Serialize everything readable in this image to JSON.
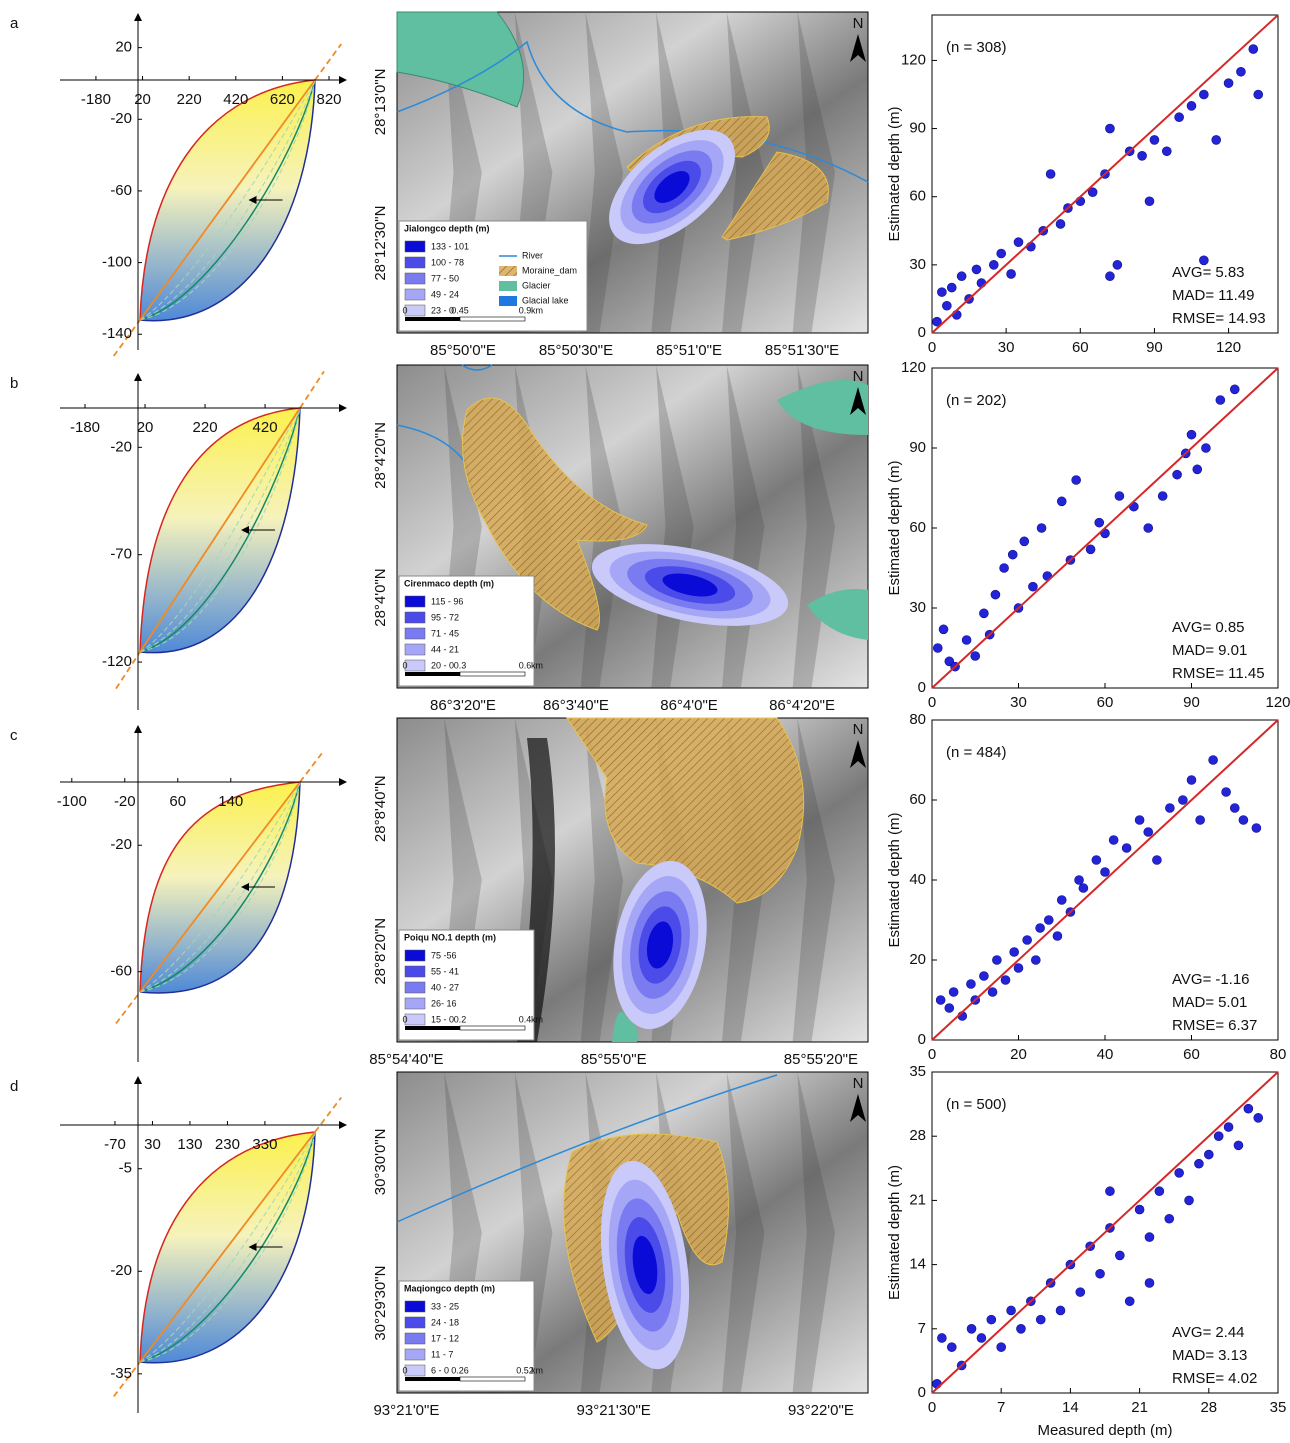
{
  "chart_data": [
    {
      "type": "scatter",
      "sample_label": "(n = 308)",
      "y_label": "Estimated depth (m)",
      "xlim": [
        0,
        140
      ],
      "ylim": [
        0,
        140
      ],
      "xticks": [
        0,
        30,
        60,
        90,
        120
      ],
      "yticks": [
        0,
        30,
        60,
        90,
        120
      ],
      "color": "#2323d8",
      "line_color": "#d62728",
      "x": [
        2,
        4,
        6,
        8,
        10,
        12,
        15,
        18,
        20,
        25,
        28,
        32,
        35,
        40,
        45,
        48,
        52,
        55,
        60,
        65,
        70,
        72,
        75,
        80,
        85,
        90,
        95,
        100,
        105,
        110,
        115,
        120,
        125,
        130,
        132,
        72,
        88,
        110
      ],
      "values": [
        5,
        18,
        12,
        20,
        8,
        25,
        15,
        28,
        22,
        30,
        35,
        26,
        40,
        38,
        45,
        70,
        48,
        55,
        58,
        62,
        70,
        90,
        30,
        80,
        78,
        85,
        80,
        95,
        100,
        105,
        85,
        110,
        115,
        125,
        105,
        25,
        58,
        32
      ],
      "stats": [
        {
          "label": "AVG=",
          "value": 5.83
        },
        {
          "label": "MAD=",
          "value": 11.49
        },
        {
          "label": "RMSE=",
          "value": 14.93
        }
      ]
    },
    {
      "type": "scatter",
      "sample_label": "(n = 202)",
      "y_label": "Estimated depth (m)",
      "xlim": [
        0,
        120
      ],
      "ylim": [
        0,
        120
      ],
      "xticks": [
        0,
        30,
        60,
        90,
        120
      ],
      "yticks": [
        0,
        30,
        60,
        90,
        120
      ],
      "color": "#2323d8",
      "line_color": "#d62728",
      "x": [
        2,
        4,
        6,
        8,
        12,
        15,
        18,
        20,
        22,
        25,
        28,
        30,
        32,
        35,
        38,
        40,
        45,
        48,
        50,
        55,
        58,
        60,
        65,
        70,
        75,
        80,
        85,
        88,
        90,
        92,
        95,
        100,
        105
      ],
      "values": [
        15,
        22,
        10,
        8,
        18,
        12,
        28,
        20,
        35,
        45,
        50,
        30,
        55,
        38,
        60,
        42,
        70,
        48,
        78,
        52,
        62,
        58,
        72,
        68,
        60,
        72,
        80,
        88,
        95,
        82,
        90,
        108,
        112
      ],
      "stats": [
        {
          "label": "AVG=",
          "value": 0.85
        },
        {
          "label": "MAD=",
          "value": 9.01
        },
        {
          "label": "RMSE=",
          "value": 11.45
        }
      ]
    },
    {
      "type": "scatter",
      "sample_label": "(n = 484)",
      "y_label": "Estimated depth (m)",
      "xlim": [
        0,
        80
      ],
      "ylim": [
        0,
        80
      ],
      "xticks": [
        0,
        20,
        40,
        60,
        80
      ],
      "yticks": [
        0,
        20,
        40,
        60,
        80
      ],
      "color": "#2323d8",
      "line_color": "#d62728",
      "x": [
        2,
        4,
        5,
        7,
        9,
        10,
        12,
        14,
        15,
        17,
        19,
        20,
        22,
        24,
        25,
        27,
        29,
        30,
        32,
        34,
        35,
        38,
        40,
        42,
        45,
        48,
        50,
        52,
        55,
        58,
        60,
        62,
        65,
        68,
        70,
        72,
        75
      ],
      "values": [
        10,
        8,
        12,
        6,
        14,
        10,
        16,
        12,
        20,
        15,
        22,
        18,
        25,
        20,
        28,
        30,
        26,
        35,
        32,
        40,
        38,
        45,
        42,
        50,
        48,
        55,
        52,
        45,
        58,
        60,
        65,
        55,
        70,
        62,
        58,
        55,
        53
      ],
      "stats": [
        {
          "label": "AVG=",
          "value": -1.16
        },
        {
          "label": "MAD=",
          "value": 5.01
        },
        {
          "label": "RMSE=",
          "value": 6.37
        }
      ]
    },
    {
      "type": "scatter",
      "sample_label": "(n = 500)",
      "y_label": "Estimated depth (m)",
      "x_label": "Measured depth (m)",
      "xlim": [
        0,
        35
      ],
      "ylim": [
        0,
        35
      ],
      "xticks": [
        0,
        7,
        14,
        21,
        28,
        35
      ],
      "yticks": [
        0,
        7,
        14,
        21,
        28,
        35
      ],
      "color": "#2323d8",
      "line_color": "#d62728",
      "x": [
        0.5,
        1,
        2,
        3,
        4,
        5,
        6,
        7,
        8,
        9,
        10,
        11,
        12,
        13,
        14,
        15,
        16,
        17,
        18,
        19,
        20,
        21,
        22,
        23,
        24,
        25,
        26,
        27,
        28,
        29,
        30,
        31,
        32,
        33,
        18,
        22
      ],
      "values": [
        1,
        6,
        5,
        3,
        7,
        6,
        8,
        5,
        9,
        7,
        10,
        8,
        12,
        9,
        14,
        11,
        16,
        13,
        18,
        15,
        10,
        20,
        17,
        22,
        19,
        24,
        21,
        25,
        26,
        28,
        29,
        27,
        31,
        30,
        22,
        12
      ],
      "stats": [
        {
          "label": "AVG=",
          "value": 2.44
        },
        {
          "label": "MAD=",
          "value": 3.13
        },
        {
          "label": "RMSE=",
          "value": 4.02
        }
      ]
    }
  ],
  "panels": [
    {
      "label": "a",
      "diagram": {
        "xlim": [
          -420,
          910
        ],
        "ylim": [
          -146,
          41
        ],
        "xticks": [
          -180,
          20,
          220,
          420,
          620,
          820
        ],
        "yticks": [
          20,
          -20,
          -60,
          -100,
          -140
        ]
      },
      "map": {
        "legend_title": "Jialongco depth (m)",
        "classes": [
          "133 - 101",
          "100 - 78",
          "77 - 50",
          "49 - 24",
          "23 - 0"
        ],
        "scale": [
          "0",
          "0.45",
          "0.9",
          "km"
        ],
        "north": "N",
        "extra": [
          "River",
          "Moraine_dam",
          "Glacier",
          "Glacial lake"
        ],
        "lat": [
          "28°13'0\"N",
          "28°12'30\"N"
        ],
        "lon": [
          "85°50'0\"E",
          "85°50'30\"E",
          "85°51'0\"E",
          "85°51'30\"E"
        ]
      }
    },
    {
      "label": "b",
      "diagram": {
        "xlim": [
          -330,
          703
        ],
        "ylim": [
          -140,
          16
        ],
        "xticks": [
          -180,
          20,
          220,
          420
        ],
        "yticks": [
          -20,
          -70,
          -120
        ]
      },
      "map": {
        "legend_title": "Cirenmaco depth (m)",
        "classes": [
          "115 - 96",
          "95 - 72",
          "71 - 45",
          "44 - 21",
          "20 - 0"
        ],
        "scale": [
          "0",
          "0.3",
          "0.6",
          "km"
        ],
        "north": "N",
        "lat": [
          "28°4'20\"N",
          "28°4'0\"N"
        ],
        "lon": [
          "86°3'20\"E",
          "86°3'40\"E",
          "86°4'0\"E",
          "86°4'20\"E"
        ]
      }
    },
    {
      "label": "c",
      "diagram": {
        "xlim": [
          -148,
          320
        ],
        "ylim": [
          -87,
          19
        ],
        "xticks": [
          -100,
          -20,
          60,
          140
        ],
        "yticks": [
          -20,
          -60
        ]
      },
      "map": {
        "legend_title": "Poiqu NO.1 depth (m)",
        "classes": [
          "75 -56",
          "55 - 41",
          "40 - 27",
          "26- 16",
          "15 - 0"
        ],
        "scale": [
          "0",
          "0.2",
          "0.4",
          "km"
        ],
        "north": "N",
        "lat": [
          "28°8'40\"N",
          "28°8'20\"N"
        ],
        "lon": [
          "85°54'40\"E",
          "85°55'0\"E",
          "85°55'20\"E"
        ]
      }
    },
    {
      "label": "d",
      "diagram": {
        "xlim": [
          -270,
          557
        ],
        "ylim": [
          -40,
          9
        ],
        "xticks": [
          -70,
          30,
          130,
          230,
          330
        ],
        "yticks": [
          -5,
          -20,
          -35
        ]
      },
      "map": {
        "legend_title": "Maqiongco depth (m)",
        "classes": [
          "33 - 25",
          "24 - 18",
          "17 - 12",
          "11 - 7",
          "6 - 0"
        ],
        "scale": [
          "0",
          "0.26",
          "0.52",
          "km"
        ],
        "north": "N",
        "lat": [
          "30°30'0\"N",
          "30°29'30\"N"
        ],
        "lon": [
          "93°21'0\"E",
          "93°21'30\"E",
          "93°22'0\"E"
        ]
      }
    }
  ]
}
